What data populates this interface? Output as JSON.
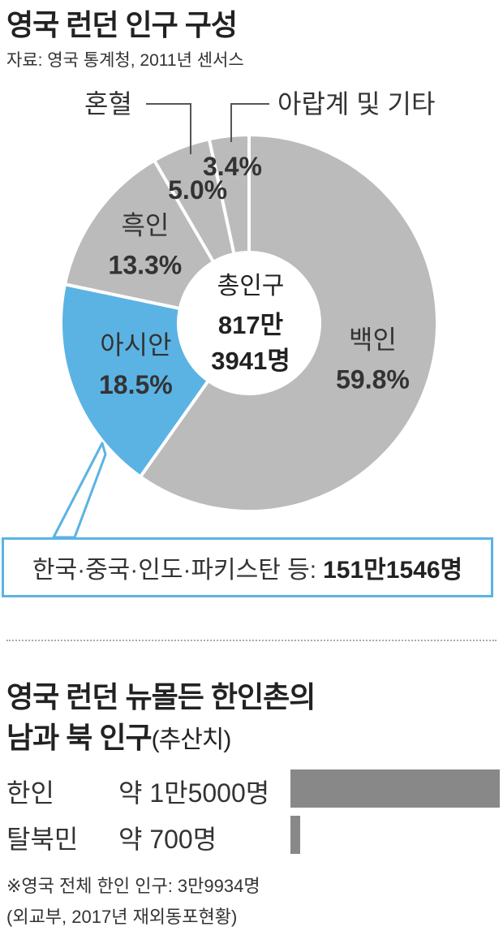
{
  "section1": {
    "title": "영국 런던 인구 구성",
    "source": "자료: 영국 통계청, 2011년 센서스"
  },
  "chart_data": [
    {
      "type": "pie",
      "subtype": "donut",
      "title": "영국 런던 인구 구성",
      "center_text": {
        "line1": "총인구",
        "line2": "817만",
        "line3": "3941명"
      },
      "slices": [
        {
          "label": "백인",
          "value": 59.8,
          "value_label": "59.8%",
          "color": "#bbbbbb"
        },
        {
          "label": "아시안",
          "value": 18.5,
          "value_label": "18.5%",
          "color": "#5bb3e4"
        },
        {
          "label": "흑인",
          "value": 13.3,
          "value_label": "13.3%",
          "color": "#bbbbbb"
        },
        {
          "label": "혼혈",
          "value": 5.0,
          "value_label": "5.0%",
          "color": "#bbbbbb"
        },
        {
          "label": "아랍계 및 기타",
          "value": 3.4,
          "value_label": "3.4%",
          "color": "#bbbbbb"
        }
      ],
      "callout": {
        "text": "한국·중국·인도·파키스탄 등:",
        "value": "151만1546명"
      }
    },
    {
      "type": "bar",
      "orientation": "horizontal",
      "title": "영국 런던 뉴몰든 한인촌의",
      "title_line2": "남과 북 인구",
      "title_suffix": "(추산치)",
      "categories": [
        "한인",
        "탈북민"
      ],
      "values": [
        15000,
        700
      ],
      "value_labels": [
        "약 1만5000명",
        "약 700명"
      ],
      "bar_color": "#888888"
    }
  ],
  "notes": {
    "note1": "※영국 전체 한인 인구: 3만9934명",
    "note2": "(외교부, 2017년 재외동포현황)"
  }
}
